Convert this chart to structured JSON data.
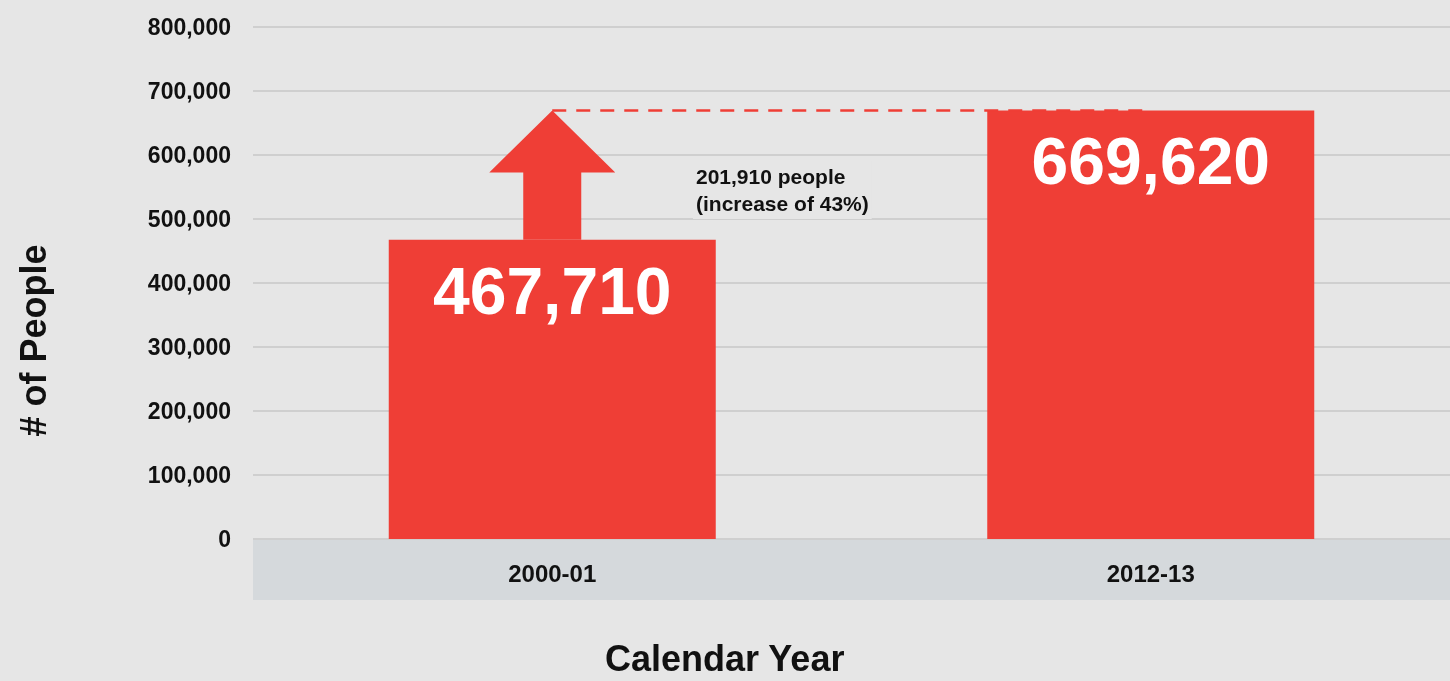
{
  "chart_data": {
    "type": "bar",
    "xlabel": "Calendar Year",
    "ylabel": "# of People",
    "categories": [
      "2000-01",
      "2012-13"
    ],
    "values": [
      467710,
      669620
    ],
    "color": "#ef3e36",
    "value_labels": [
      "467,710",
      "669,620"
    ],
    "ylim": [
      0,
      800000
    ],
    "yticks": [
      0,
      {
        "value": 100000,
        "label": "100,000"
      },
      {
        "value": 200000,
        "label": "200,000"
      },
      {
        "value": 300000,
        "label": "300,000"
      },
      {
        "value": 400000,
        "label": "400,000"
      },
      {
        "value": 500000,
        "label": "500,000"
      },
      {
        "value": 600000,
        "label": "600,000"
      },
      {
        "value": 700000,
        "label": "700,000"
      },
      {
        "value": 800000,
        "label": "800,000"
      }
    ],
    "grid": "y",
    "ref_lines": [
      {
        "axis": "y",
        "value": 669620,
        "label": null,
        "color": "#ef3e36",
        "line_style": "dashed"
      }
    ],
    "annotations": [
      "201,910 people\n(increase of 43%)"
    ]
  }
}
